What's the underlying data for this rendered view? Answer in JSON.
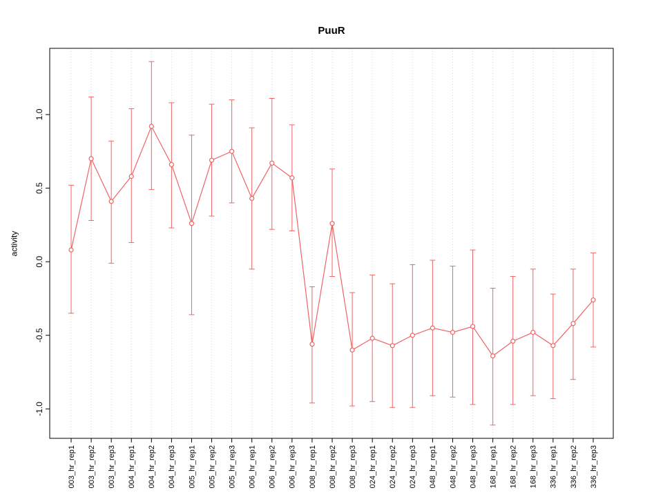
{
  "chart_data": {
    "type": "line",
    "title": "PuuR",
    "xlabel": "",
    "ylabel": "activity",
    "ylim": [
      -1.2,
      1.45
    ],
    "ytick_values": [
      -1.0,
      -0.5,
      0.0,
      0.5,
      1.0
    ],
    "ytick_labels": [
      "-1.0",
      "-0.5",
      "0.0",
      "0.5",
      "1.0"
    ],
    "grid": "vertical-dotted",
    "legend": "none",
    "categories": [
      "003_hr_rep1",
      "003_hr_rep2",
      "003_hr_rep3",
      "004_hr_rep1",
      "004_hr_rep2",
      "004_hr_rep3",
      "005_hr_rep1",
      "005_hr_rep2",
      "005_hr_rep3",
      "006_hr_rep1",
      "006_hr_rep2",
      "006_hr_rep3",
      "008_hr_rep1",
      "008_hr_rep2",
      "008_hr_rep3",
      "024_hr_rep1",
      "024_hr_rep2",
      "024_hr_rep3",
      "048_hr_rep1",
      "048_hr_rep2",
      "048_hr_rep3",
      "168_hr_rep1",
      "168_hr_rep2",
      "168_hr_rep3",
      "336_hr_rep1",
      "336_hr_rep2",
      "336_hr_rep3"
    ],
    "series": [
      {
        "name": "PuuR activity",
        "color": "#EE6363",
        "marker": "open-circle",
        "values": [
          0.08,
          0.7,
          0.41,
          0.58,
          0.92,
          0.66,
          0.26,
          0.69,
          0.75,
          0.43,
          0.67,
          0.57,
          -0.56,
          0.26,
          -0.6,
          -0.52,
          -0.57,
          -0.5,
          -0.45,
          -0.48,
          -0.44,
          -0.64,
          -0.54,
          -0.48,
          -0.57,
          -0.42,
          -0.26
        ],
        "error_low": [
          -0.35,
          0.28,
          -0.01,
          0.13,
          0.49,
          0.23,
          -0.36,
          0.31,
          0.4,
          -0.05,
          0.22,
          0.21,
          -0.96,
          -0.1,
          -0.98,
          -0.95,
          -0.99,
          -0.99,
          -0.91,
          -0.92,
          -0.97,
          -1.11,
          -0.97,
          -0.91,
          -0.93,
          -0.8,
          -0.58
        ],
        "error_high": [
          0.52,
          1.12,
          0.82,
          1.04,
          1.36,
          1.08,
          0.86,
          1.07,
          1.1,
          0.91,
          1.11,
          0.93,
          -0.17,
          0.63,
          -0.21,
          -0.09,
          -0.15,
          -0.02,
          0.01,
          -0.03,
          0.08,
          -0.18,
          -0.1,
          -0.05,
          -0.22,
          -0.05,
          0.06
        ]
      }
    ]
  }
}
